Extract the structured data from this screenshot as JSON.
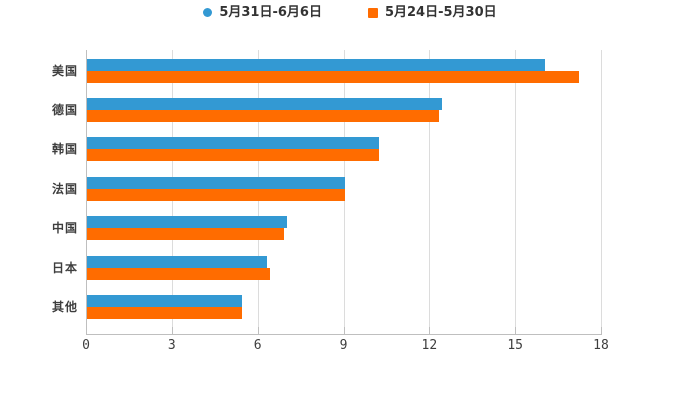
{
  "chart_data": {
    "type": "bar",
    "orientation": "horizontal",
    "title": "",
    "categories": [
      "美国",
      "德国",
      "韩国",
      "法国",
      "中国",
      "日本",
      "其他"
    ],
    "series": [
      {
        "name": "5月31日-6月6日",
        "color": "#3399D3",
        "marker": "circle",
        "values": [
          16.0,
          12.4,
          10.2,
          9.0,
          7.0,
          6.3,
          5.4
        ]
      },
      {
        "name": "5月24日-5月30日",
        "color": "#FF6C00",
        "marker": "square",
        "values": [
          17.2,
          12.3,
          10.2,
          9.0,
          6.9,
          6.4,
          5.4
        ]
      }
    ],
    "xlabel": "",
    "ylabel": "",
    "xlim": [
      0,
      18
    ],
    "x_ticks": [
      0,
      3,
      6,
      9,
      12,
      15,
      18
    ],
    "grid": true,
    "legend_position": "top"
  },
  "colors": {
    "series_blue": "#3399D3",
    "series_orange": "#FF6C00",
    "gridline": "#dcdcdc",
    "axis_line": "#bfbfbf",
    "tick_text": "#3e3e3e",
    "legend_text": "#333333",
    "background": "#ffffff"
  }
}
